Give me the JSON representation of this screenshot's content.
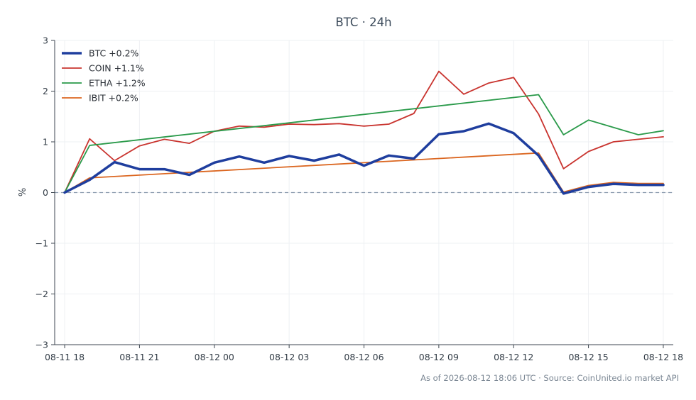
{
  "chart_data": {
    "type": "line",
    "title": "BTC · 24h",
    "xlabel": "",
    "ylabel": "%",
    "ylim": [
      -3,
      3
    ],
    "xlim": [
      -0.4,
      24.4
    ],
    "grid": true,
    "legend_position": "top-left",
    "zero_line": true,
    "x_ticks": [
      {
        "x": 0,
        "label": "08-11 18"
      },
      {
        "x": 3,
        "label": "08-11 21"
      },
      {
        "x": 6,
        "label": "08-12 00"
      },
      {
        "x": 9,
        "label": "08-12 03"
      },
      {
        "x": 12,
        "label": "08-12 06"
      },
      {
        "x": 15,
        "label": "08-12 09"
      },
      {
        "x": 18,
        "label": "08-12 12"
      },
      {
        "x": 21,
        "label": "08-12 15"
      },
      {
        "x": 24,
        "label": "08-12 18"
      }
    ],
    "y_ticks": [
      {
        "y": 3,
        "label": "3"
      },
      {
        "y": 2,
        "label": "2"
      },
      {
        "y": 1,
        "label": "1"
      },
      {
        "y": 0,
        "label": "0"
      },
      {
        "y": -1,
        "label": "−1"
      },
      {
        "y": -2,
        "label": "−2"
      },
      {
        "y": -3,
        "label": "−3"
      }
    ],
    "series": [
      {
        "name": "BTC +0.2%",
        "color": "#1f3e9e",
        "width": 3.5,
        "points": [
          [
            0,
            0.0
          ],
          [
            1,
            0.25
          ],
          [
            2,
            0.6
          ],
          [
            3,
            0.46
          ],
          [
            4,
            0.46
          ],
          [
            5,
            0.35
          ],
          [
            6,
            0.59
          ],
          [
            7,
            0.71
          ],
          [
            8,
            0.59
          ],
          [
            9,
            0.72
          ],
          [
            10,
            0.63
          ],
          [
            11,
            0.75
          ],
          [
            12,
            0.53
          ],
          [
            13,
            0.73
          ],
          [
            14,
            0.67
          ],
          [
            15,
            1.15
          ],
          [
            16,
            1.21
          ],
          [
            17,
            1.36
          ],
          [
            18,
            1.17
          ],
          [
            19,
            0.73
          ],
          [
            20,
            -0.02
          ],
          [
            21,
            0.11
          ],
          [
            22,
            0.17
          ],
          [
            23,
            0.15
          ],
          [
            24,
            0.15
          ]
        ]
      },
      {
        "name": "COIN +1.1%",
        "color": "#c9342f",
        "width": 1.8,
        "points": [
          [
            0,
            0.0
          ],
          [
            1,
            1.06
          ],
          [
            2,
            0.63
          ],
          [
            3,
            0.92
          ],
          [
            4,
            1.05
          ],
          [
            5,
            0.97
          ],
          [
            6,
            1.21
          ],
          [
            7,
            1.31
          ],
          [
            8,
            1.29
          ],
          [
            9,
            1.35
          ],
          [
            10,
            1.34
          ],
          [
            11,
            1.36
          ],
          [
            12,
            1.31
          ],
          [
            13,
            1.35
          ],
          [
            14,
            1.56
          ],
          [
            15,
            2.39
          ],
          [
            16,
            1.94
          ],
          [
            17,
            2.16
          ],
          [
            18,
            2.27
          ],
          [
            19,
            1.55
          ],
          [
            20,
            0.47
          ],
          [
            21,
            0.81
          ],
          [
            22,
            1.0
          ],
          [
            23,
            1.05
          ],
          [
            24,
            1.1
          ]
        ]
      },
      {
        "name": "ETHA +1.2%",
        "color": "#2a9a4a",
        "width": 1.8,
        "points": [
          [
            0,
            0.0
          ],
          [
            1,
            0.93
          ],
          [
            19,
            1.93
          ],
          [
            20,
            1.14
          ],
          [
            21,
            1.43
          ],
          [
            23,
            1.14
          ],
          [
            24,
            1.22
          ]
        ]
      },
      {
        "name": "IBIT +0.2%",
        "color": "#db6620",
        "width": 1.8,
        "points": [
          [
            0,
            0.0
          ],
          [
            1,
            0.29
          ],
          [
            19,
            0.78
          ],
          [
            20,
            0.01
          ],
          [
            21,
            0.14
          ],
          [
            22,
            0.2
          ],
          [
            23,
            0.18
          ],
          [
            24,
            0.18
          ]
        ]
      }
    ],
    "source": "As of 2026-08-12 18:06 UTC · Source: CoinUnited.io market API"
  }
}
